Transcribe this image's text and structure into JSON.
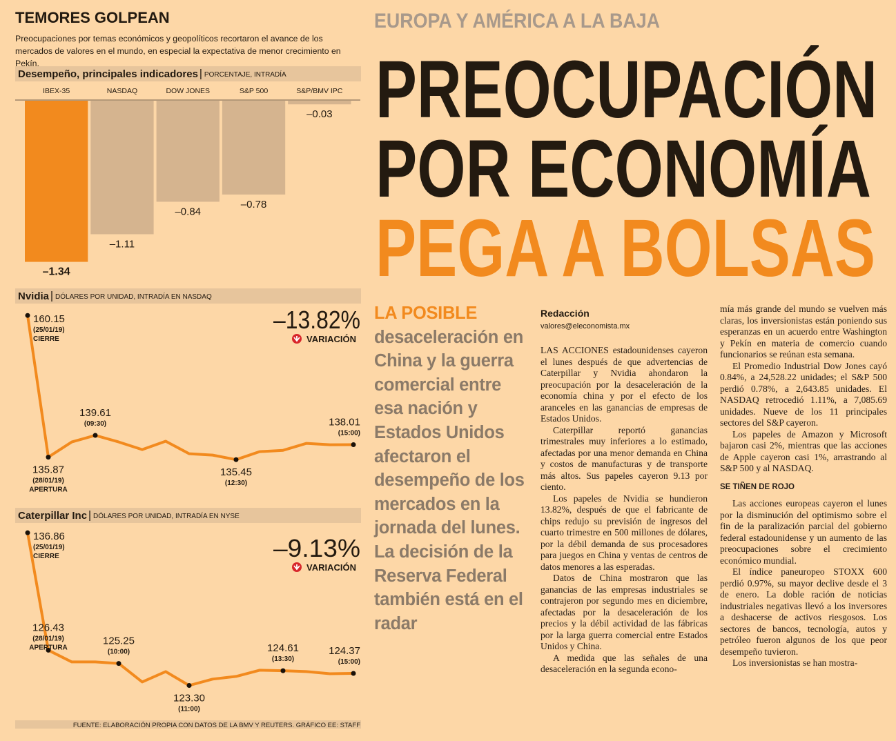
{
  "infographic": {
    "title": "TEMORES GOLPEAN",
    "intro": "Preocupaciones por temas económicos y geopolíticos recortaron el avance de los mercados de valores en el mundo, en especial la expectativa de menor crecimiento en Pekín.",
    "charts": [
      {
        "type": "bar",
        "title": "Desempeño, principales indicadores",
        "unit": "PORCENTAJE, INTRADÍA",
        "categories": [
          "IBEX-35",
          "NASDAQ",
          "DOW JONES",
          "S&P 500",
          "S&P/BMV IPC"
        ],
        "values": [
          -1.34,
          -1.11,
          -0.84,
          -0.78,
          -0.03
        ],
        "value_labels": [
          "–1.34",
          "–1.11",
          "–0.84",
          "–0.78",
          "–0.03"
        ],
        "colors": [
          "#f28a1e",
          "#d5b48f",
          "#d5b48f",
          "#d5b48f",
          "#d5b48f"
        ],
        "ylim": [
          -1.4,
          0
        ]
      },
      {
        "type": "line",
        "title": "Nvidia",
        "unit": "DÓLARES POR UNIDAD, INTRADÍA EN NASDAQ",
        "color": "#f28a1e",
        "values": [
          160.15,
          135.87,
          138.48,
          139.61,
          138.48,
          137.17,
          138.6,
          136.46,
          136.23,
          135.45,
          136.82,
          137.05,
          138.24,
          138.0,
          138.01
        ],
        "value_labels": [
          "160.15",
          "135.87",
          null,
          "139.61",
          null,
          null,
          null,
          null,
          null,
          "135.45",
          null,
          null,
          null,
          null,
          "138.01"
        ],
        "point_notes": [
          {
            "date": "(25/01/19)",
            "note": "CIERRE"
          },
          {
            "date": "(28/01/19)",
            "note": "APERTURA"
          },
          null,
          {
            "time": "(09:30)"
          },
          null,
          null,
          null,
          null,
          null,
          {
            "time": "(12:30)"
          },
          null,
          null,
          null,
          null,
          {
            "time": "(15:00)"
          }
        ],
        "ylim": [
          135,
          161
        ],
        "change": "–13.82%",
        "change_label": "VARIACIÓN"
      },
      {
        "type": "line",
        "title": "Caterpillar Inc",
        "unit": "DÓLARES POR UNIDAD, INTRADÍA EN NYSE",
        "color": "#f28a1e",
        "values": [
          136.86,
          126.43,
          125.39,
          125.39,
          125.25,
          123.61,
          124.53,
          123.3,
          123.86,
          124.1,
          124.65,
          124.61,
          124.53,
          124.34,
          124.37
        ],
        "value_labels": [
          "136.86",
          "126.43",
          null,
          null,
          "125.25",
          null,
          null,
          "123.30",
          null,
          null,
          null,
          "124.61",
          null,
          null,
          "124.37"
        ],
        "point_notes": [
          {
            "date": "(25/01/19)",
            "note": "CIERRE"
          },
          {
            "date": "(28/01/19)",
            "note": "APERTURA"
          },
          null,
          null,
          {
            "time": "(10:00)"
          },
          null,
          null,
          {
            "time": "(11:00)"
          },
          null,
          null,
          null,
          {
            "time": "(13:30)"
          },
          null,
          null,
          {
            "time": "(15:00)"
          }
        ],
        "ylim": [
          122.9,
          137.3
        ],
        "change": "–9.13%",
        "change_label": "VARIACIÓN"
      }
    ],
    "source": "FUENTE: ELABORACIÓN PROPIA CON DATOS DE LA BMV Y REUTERS. GRÁFICO EE: STAFF"
  },
  "article": {
    "kicker": "EUROPA Y AMÉRICA A LA BAJA",
    "headline": [
      "PREOCUPACIÓN",
      "POR ECONOMÍA",
      "PEGA A BOLSAS"
    ],
    "deck_lead": "LA POSIBLE",
    "deck": "desaceleración en China y la guerra comercial entre esa nación y Estados Unidos afectaron el desempeño de los mercados en la jornada del lunes. La decisión de la Reserva Federal también está en el radar",
    "byline": "Redacción",
    "email": "valores@eleconomista.mx",
    "columns": [
      [
        {
          "p": "LAS ACCIONES estadounidenses cayeron el lunes después de que advertencias de Caterpillar y Nvidia ahondaron la preocupación por la desaceleración de la economía china y por el efecto de los aranceles en las ganancias de empresas de Estados Unidos."
        },
        {
          "p": "Caterpillar reportó ganancias trimestrales muy inferiores a lo estimado, afectadas por una menor demanda en China y costos de manufacturas y de transporte más altos. Sus papeles cayeron 9.13 por ciento."
        },
        {
          "p": "Los papeles de Nvidia se hundieron 13.82%, después de que el fabricante de chips redujo su previsión de ingresos del cuarto trimestre en 500 millones de dólares, por la débil demanda de sus procesadores para juegos en China y ventas de centros de datos menores a las esperadas."
        },
        {
          "p": "Datos de China mostraron que las ganancias de las empresas industriales se contrajeron por segundo mes en diciembre, afectadas por la desaceleración de los precios y la débil actividad de las fábricas por la larga guerra comercial entre Estados Unidos y China."
        },
        {
          "p": "A medida que las señales de una desaceleración en la segunda econo-"
        }
      ],
      [
        {
          "p": "mía más grande del mundo se vuelven más claras, los inversionistas están poniendo sus esperanzas en un acuerdo entre Washington y Pekín en materia de comercio cuando funcionarios se reúnan esta semana."
        },
        {
          "p": "El Promedio Industrial Dow Jones cayó 0.84%, a 24,528.22 unidades; el S&P 500 perdió 0.78%, a 2,643.85 unidades. El NASDAQ retrocedió 1.11%, a 7,085.69 unidades. Nueve de los 11 principales sectores del S&P cayeron."
        },
        {
          "p": "Los papeles de Amazon y Microsoft bajaron casi 2%, mientras que las acciones de Apple cayeron casi 1%, arrastrando al S&P 500 y al NASDAQ."
        },
        {
          "h": "SE TIÑEN DE ROJO"
        },
        {
          "p": "Las acciones europeas cayeron el lunes por la disminución del optimismo sobre el fin de la paralización parcial del gobierno federal estadounidense y un aumento de las preocupaciones sobre el crecimiento económico mundial."
        },
        {
          "p": "El índice paneuropeo STOXX 600 perdió 0.97%, su mayor declive desde el 3 de enero. La doble ración de noticias industriales negativas llevó a los inversores a deshacerse de activos riesgosos. Los sectores de bancos, tecnología, autos y petróleo fueron algunos de los que peor desempeño tuvieron."
        },
        {
          "p": "Los inversionistas se han mostra-"
        }
      ]
    ]
  }
}
